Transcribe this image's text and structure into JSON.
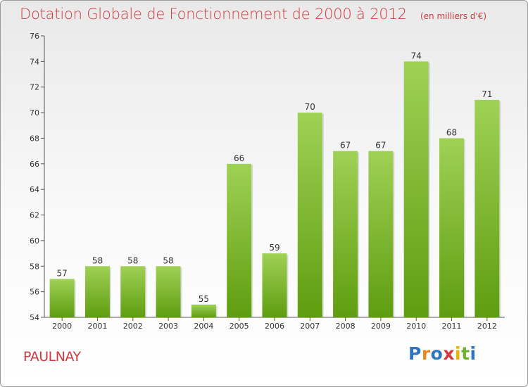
{
  "title": "Dotation Globale de Fonctionnement de 2000 à 2012",
  "subtitle": "(en milliers d'€)",
  "place": "PAULNAY",
  "logo": {
    "text": "Proxiti",
    "letters": [
      "P",
      "r",
      "o",
      "x",
      "i",
      "t",
      "i"
    ],
    "colors": [
      "#2f74c0",
      "#ea8a1e",
      "#2f74c0",
      "#d33a3f",
      "#e6b400",
      "#6fb02f",
      "#2f74c0"
    ]
  },
  "colors": {
    "bar_top": "#9fd155",
    "bar_bottom": "#5f9d10",
    "title": "#d33a3f",
    "axis": "#555555"
  },
  "chart_data": {
    "type": "bar",
    "title": "Dotation Globale de Fonctionnement de 2000 à 2012",
    "subtitle": "(en milliers d'€)",
    "xlabel": "",
    "ylabel": "",
    "categories": [
      "2000",
      "2001",
      "2002",
      "2003",
      "2004",
      "2005",
      "2006",
      "2007",
      "2008",
      "2009",
      "2010",
      "2011",
      "2012"
    ],
    "values": [
      57,
      58,
      58,
      58,
      55,
      66,
      59,
      70,
      67,
      67,
      74,
      68,
      71
    ],
    "ylim": [
      54,
      76
    ],
    "yticks": [
      54,
      56,
      58,
      60,
      62,
      64,
      66,
      68,
      70,
      72,
      74,
      76
    ],
    "grid": false,
    "data_labels": true
  }
}
